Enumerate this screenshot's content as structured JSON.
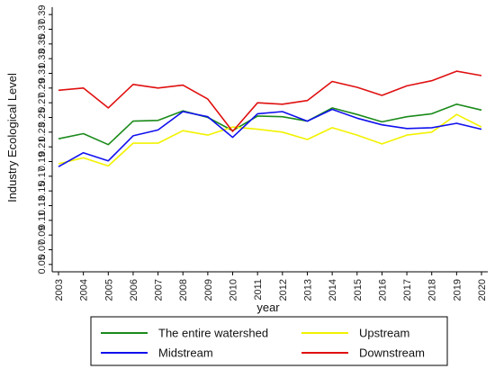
{
  "chart_data": {
    "type": "line",
    "xlabel": "year",
    "ylabel": "Industry Ecological Level",
    "x": [
      "2003",
      "2004",
      "2005",
      "2006",
      "2007",
      "2008",
      "2009",
      "2010",
      "2011",
      "2012",
      "2013",
      "2014",
      "2015",
      "2016",
      "2017",
      "2018",
      "2019",
      "2020"
    ],
    "ylim": [
      0.04,
      0.4
    ],
    "yticks": [
      "0.05",
      "0.07",
      "0.09",
      "0.11",
      "0.13",
      "0.15",
      "0.17",
      "0.19",
      "0.21",
      "0.23",
      "0.25",
      "0.27",
      "0.29",
      "0.31",
      "0.33",
      "0.35",
      "0.37",
      "0.39"
    ],
    "grid": false,
    "legend_position": "bottom",
    "series": [
      {
        "name": "The entire watershed",
        "color": "#1a8a1a",
        "values": [
          0.221,
          0.228,
          0.213,
          0.245,
          0.246,
          0.259,
          0.25,
          0.232,
          0.252,
          0.251,
          0.245,
          0.263,
          0.254,
          0.244,
          0.251,
          0.255,
          0.268,
          0.26
        ]
      },
      {
        "name": "Upstream",
        "color": "#f2f200",
        "values": [
          0.187,
          0.195,
          0.184,
          0.215,
          0.215,
          0.232,
          0.226,
          0.237,
          0.234,
          0.23,
          0.22,
          0.236,
          0.226,
          0.214,
          0.226,
          0.23,
          0.254,
          0.237
        ]
      },
      {
        "name": "Midstream",
        "color": "#1010ee",
        "values": [
          0.183,
          0.202,
          0.191,
          0.225,
          0.233,
          0.258,
          0.251,
          0.223,
          0.255,
          0.258,
          0.245,
          0.261,
          0.249,
          0.24,
          0.235,
          0.236,
          0.242,
          0.234
        ]
      },
      {
        "name": "Downstream",
        "color": "#e01010",
        "values": [
          0.287,
          0.29,
          0.263,
          0.295,
          0.29,
          0.294,
          0.275,
          0.231,
          0.27,
          0.268,
          0.273,
          0.299,
          0.291,
          0.28,
          0.293,
          0.3,
          0.313,
          0.307
        ]
      }
    ]
  }
}
